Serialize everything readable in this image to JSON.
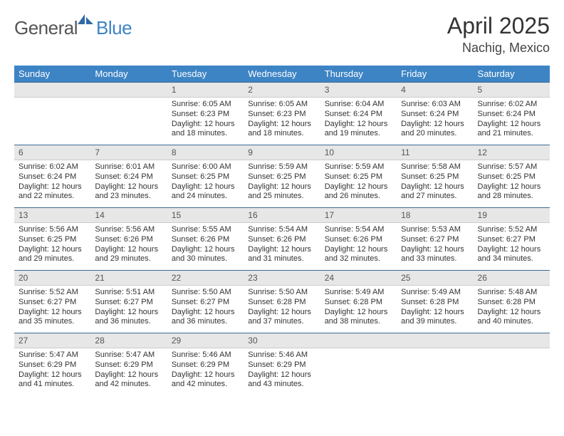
{
  "brand": {
    "text1": "General",
    "text2": "Blue",
    "logo_color": "#2f6aa8"
  },
  "title": "April 2025",
  "location": "Nachig, Mexico",
  "colors": {
    "header_bg": "#3d84c5",
    "header_text": "#ffffff",
    "daynum_bg": "#e7e7e7",
    "cell_border_top": "#3d6a94",
    "body_text": "#333333"
  },
  "fonts": {
    "title_size_pt": 24,
    "location_size_pt": 14,
    "header_size_pt": 10,
    "body_size_pt": 8.5
  },
  "day_headers": [
    "Sunday",
    "Monday",
    "Tuesday",
    "Wednesday",
    "Thursday",
    "Friday",
    "Saturday"
  ],
  "weeks": [
    [
      null,
      null,
      {
        "n": "1",
        "sunrise": "6:05 AM",
        "sunset": "6:23 PM",
        "daylight": "12 hours and 18 minutes."
      },
      {
        "n": "2",
        "sunrise": "6:05 AM",
        "sunset": "6:23 PM",
        "daylight": "12 hours and 18 minutes."
      },
      {
        "n": "3",
        "sunrise": "6:04 AM",
        "sunset": "6:24 PM",
        "daylight": "12 hours and 19 minutes."
      },
      {
        "n": "4",
        "sunrise": "6:03 AM",
        "sunset": "6:24 PM",
        "daylight": "12 hours and 20 minutes."
      },
      {
        "n": "5",
        "sunrise": "6:02 AM",
        "sunset": "6:24 PM",
        "daylight": "12 hours and 21 minutes."
      }
    ],
    [
      {
        "n": "6",
        "sunrise": "6:02 AM",
        "sunset": "6:24 PM",
        "daylight": "12 hours and 22 minutes."
      },
      {
        "n": "7",
        "sunrise": "6:01 AM",
        "sunset": "6:24 PM",
        "daylight": "12 hours and 23 minutes."
      },
      {
        "n": "8",
        "sunrise": "6:00 AM",
        "sunset": "6:25 PM",
        "daylight": "12 hours and 24 minutes."
      },
      {
        "n": "9",
        "sunrise": "5:59 AM",
        "sunset": "6:25 PM",
        "daylight": "12 hours and 25 minutes."
      },
      {
        "n": "10",
        "sunrise": "5:59 AM",
        "sunset": "6:25 PM",
        "daylight": "12 hours and 26 minutes."
      },
      {
        "n": "11",
        "sunrise": "5:58 AM",
        "sunset": "6:25 PM",
        "daylight": "12 hours and 27 minutes."
      },
      {
        "n": "12",
        "sunrise": "5:57 AM",
        "sunset": "6:25 PM",
        "daylight": "12 hours and 28 minutes."
      }
    ],
    [
      {
        "n": "13",
        "sunrise": "5:56 AM",
        "sunset": "6:25 PM",
        "daylight": "12 hours and 29 minutes."
      },
      {
        "n": "14",
        "sunrise": "5:56 AM",
        "sunset": "6:26 PM",
        "daylight": "12 hours and 29 minutes."
      },
      {
        "n": "15",
        "sunrise": "5:55 AM",
        "sunset": "6:26 PM",
        "daylight": "12 hours and 30 minutes."
      },
      {
        "n": "16",
        "sunrise": "5:54 AM",
        "sunset": "6:26 PM",
        "daylight": "12 hours and 31 minutes."
      },
      {
        "n": "17",
        "sunrise": "5:54 AM",
        "sunset": "6:26 PM",
        "daylight": "12 hours and 32 minutes."
      },
      {
        "n": "18",
        "sunrise": "5:53 AM",
        "sunset": "6:27 PM",
        "daylight": "12 hours and 33 minutes."
      },
      {
        "n": "19",
        "sunrise": "5:52 AM",
        "sunset": "6:27 PM",
        "daylight": "12 hours and 34 minutes."
      }
    ],
    [
      {
        "n": "20",
        "sunrise": "5:52 AM",
        "sunset": "6:27 PM",
        "daylight": "12 hours and 35 minutes."
      },
      {
        "n": "21",
        "sunrise": "5:51 AM",
        "sunset": "6:27 PM",
        "daylight": "12 hours and 36 minutes."
      },
      {
        "n": "22",
        "sunrise": "5:50 AM",
        "sunset": "6:27 PM",
        "daylight": "12 hours and 36 minutes."
      },
      {
        "n": "23",
        "sunrise": "5:50 AM",
        "sunset": "6:28 PM",
        "daylight": "12 hours and 37 minutes."
      },
      {
        "n": "24",
        "sunrise": "5:49 AM",
        "sunset": "6:28 PM",
        "daylight": "12 hours and 38 minutes."
      },
      {
        "n": "25",
        "sunrise": "5:49 AM",
        "sunset": "6:28 PM",
        "daylight": "12 hours and 39 minutes."
      },
      {
        "n": "26",
        "sunrise": "5:48 AM",
        "sunset": "6:28 PM",
        "daylight": "12 hours and 40 minutes."
      }
    ],
    [
      {
        "n": "27",
        "sunrise": "5:47 AM",
        "sunset": "6:29 PM",
        "daylight": "12 hours and 41 minutes."
      },
      {
        "n": "28",
        "sunrise": "5:47 AM",
        "sunset": "6:29 PM",
        "daylight": "12 hours and 42 minutes."
      },
      {
        "n": "29",
        "sunrise": "5:46 AM",
        "sunset": "6:29 PM",
        "daylight": "12 hours and 42 minutes."
      },
      {
        "n": "30",
        "sunrise": "5:46 AM",
        "sunset": "6:29 PM",
        "daylight": "12 hours and 43 minutes."
      },
      null,
      null,
      null
    ]
  ],
  "labels": {
    "sunrise": "Sunrise:",
    "sunset": "Sunset:",
    "daylight": "Daylight:"
  }
}
